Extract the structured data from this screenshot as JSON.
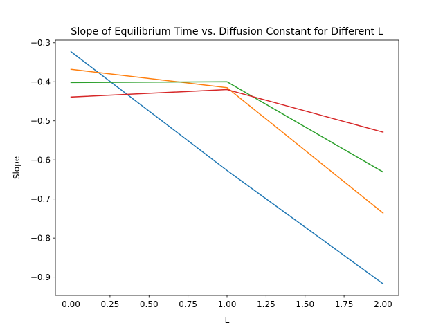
{
  "chart_data": {
    "type": "line",
    "title": "Slope of Equilibrium Time vs. Diffusion Constant for Different L",
    "xlabel": "L",
    "ylabel": "Slope",
    "x": [
      0,
      1,
      2
    ],
    "series": [
      {
        "values": [
          -0.323,
          -0.627,
          -0.917
        ],
        "color": "#1f77b4"
      },
      {
        "values": [
          -0.368,
          -0.415,
          -0.736
        ],
        "color": "#ff7f0e"
      },
      {
        "values": [
          -0.402,
          -0.4,
          -0.631
        ],
        "color": "#2ca02c"
      },
      {
        "values": [
          -0.439,
          -0.42,
          -0.529
        ],
        "color": "#d62728"
      }
    ],
    "xlim": [
      -0.1,
      2.1
    ],
    "ylim": [
      -0.9467,
      -0.2933
    ],
    "xticks": [
      0.0,
      0.25,
      0.5,
      0.75,
      1.0,
      1.25,
      1.5,
      1.75,
      2.0
    ],
    "xtick_labels": [
      "0.00",
      "0.25",
      "0.50",
      "0.75",
      "1.00",
      "1.25",
      "1.50",
      "1.75",
      "2.00"
    ],
    "yticks": [
      -0.3,
      -0.4,
      -0.5,
      -0.6,
      -0.7,
      -0.8,
      -0.9
    ],
    "ytick_labels": [
      "−0.3",
      "−0.4",
      "−0.5",
      "−0.6",
      "−0.7",
      "−0.8",
      "−0.9"
    ],
    "grid": false,
    "legend": "none"
  }
}
